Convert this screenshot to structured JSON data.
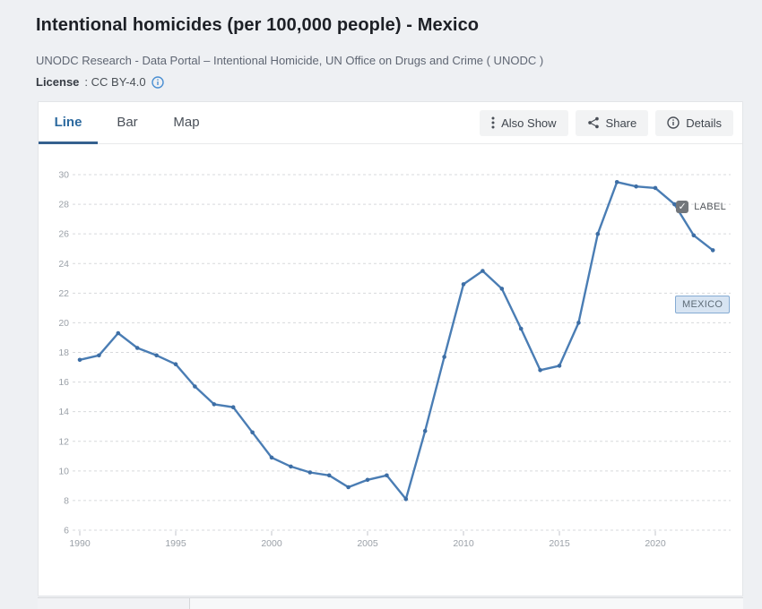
{
  "header": {
    "title": "Intentional homicides (per 100,000 people) - Mexico",
    "source": "UNODC Research - Data Portal – Intentional Homicide, UN Office on Drugs and Crime ( UNODC )",
    "license_label": "License",
    "license_value": ": CC BY-4.0"
  },
  "tabs": [
    {
      "label": "Line",
      "active": true
    },
    {
      "label": "Bar",
      "active": false
    },
    {
      "label": "Map",
      "active": false
    }
  ],
  "toolbar": {
    "also_show_label": "Also Show",
    "share_label": "Share",
    "details_label": "Details"
  },
  "chart_controls": {
    "label_checkbox_text": "LABEL",
    "label_checkbox_checked": true,
    "checkmark": "✓"
  },
  "series_label": "MEXICO",
  "colors": {
    "accent_blue": "#2d6a9f",
    "line_blue": "#4a7db4",
    "point_blue": "#3d6ea5",
    "grid_gray": "#d7d9dc",
    "axis_text": "#9ba1a8",
    "info_blue": "#4a8fd2"
  },
  "chart_data": {
    "type": "line",
    "title": "Intentional homicides (per 100,000 people) - Mexico",
    "xlabel": "",
    "ylabel": "",
    "ylim": [
      6,
      30
    ],
    "ytick_step": 2,
    "xticks": [
      1990,
      1995,
      2000,
      2005,
      2010,
      2015,
      2020
    ],
    "grid": "horizontal-dashed",
    "legend_position": "inline-label-right",
    "series": [
      {
        "name": "MEXICO",
        "x": [
          1990,
          1991,
          1992,
          1993,
          1994,
          1995,
          1996,
          1997,
          1998,
          1999,
          2000,
          2001,
          2002,
          2003,
          2004,
          2005,
          2006,
          2007,
          2008,
          2009,
          2010,
          2011,
          2012,
          2013,
          2014,
          2015,
          2016,
          2017,
          2018,
          2019,
          2020,
          2021,
          2022,
          2023
        ],
        "values": [
          17.5,
          17.8,
          19.3,
          18.3,
          17.8,
          17.2,
          15.7,
          14.5,
          14.3,
          12.6,
          10.9,
          10.3,
          9.9,
          9.7,
          8.9,
          9.4,
          9.7,
          8.1,
          12.7,
          17.7,
          22.6,
          23.5,
          22.3,
          19.6,
          16.8,
          17.1,
          20.0,
          26.0,
          29.5,
          29.2,
          29.1,
          28.0,
          25.9,
          24.9
        ]
      }
    ]
  }
}
